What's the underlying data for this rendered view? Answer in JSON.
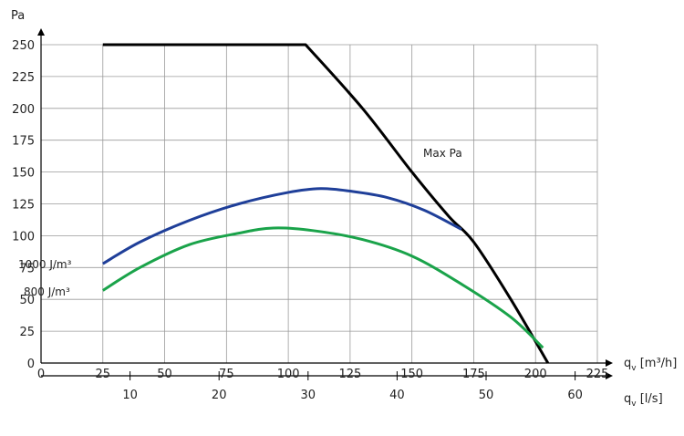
{
  "chart_data": {
    "type": "line",
    "ylabel": "Pa",
    "xlabel": "q",
    "xlabel_sub": "v",
    "xlabel_unit": "[m³/h]",
    "x2label": "q",
    "x2label_sub": "v",
    "x2label_unit": "[l/s]",
    "xlim": [
      0,
      225
    ],
    "ylim": [
      0,
      250
    ],
    "x_ticks": [
      "0",
      "25",
      "50",
      "75",
      "100",
      "125",
      "150",
      "175",
      "200",
      "225"
    ],
    "y_ticks": [
      "0",
      "25",
      "50",
      "75",
      "100",
      "125",
      "150",
      "175",
      "200",
      "225",
      "250"
    ],
    "x2_ticks": [
      "10",
      "20",
      "30",
      "40",
      "50",
      "60"
    ],
    "grid": true,
    "series": [
      {
        "name": "Max Pa",
        "color": "#000000",
        "x": [
          25,
          107,
          130,
          150,
          165,
          175,
          190,
          205
        ],
        "y": [
          250,
          250,
          200,
          150,
          115,
          95,
          50,
          0
        ]
      },
      {
        "name": "1000 J/m³",
        "color": "#1f3f99",
        "x": [
          25,
          40,
          60,
          80,
          100,
          113,
          125,
          140,
          155,
          170
        ],
        "y": [
          78,
          95,
          112,
          125,
          134,
          137,
          135,
          130,
          120,
          105
        ]
      },
      {
        "name": "800 J/m³",
        "color": "#1aa34a",
        "x": [
          25,
          40,
          60,
          80,
          94,
          110,
          130,
          150,
          170,
          190,
          203
        ],
        "y": [
          57,
          75,
          93,
          102,
          106,
          104,
          97,
          84,
          62,
          36,
          12
        ]
      }
    ]
  }
}
